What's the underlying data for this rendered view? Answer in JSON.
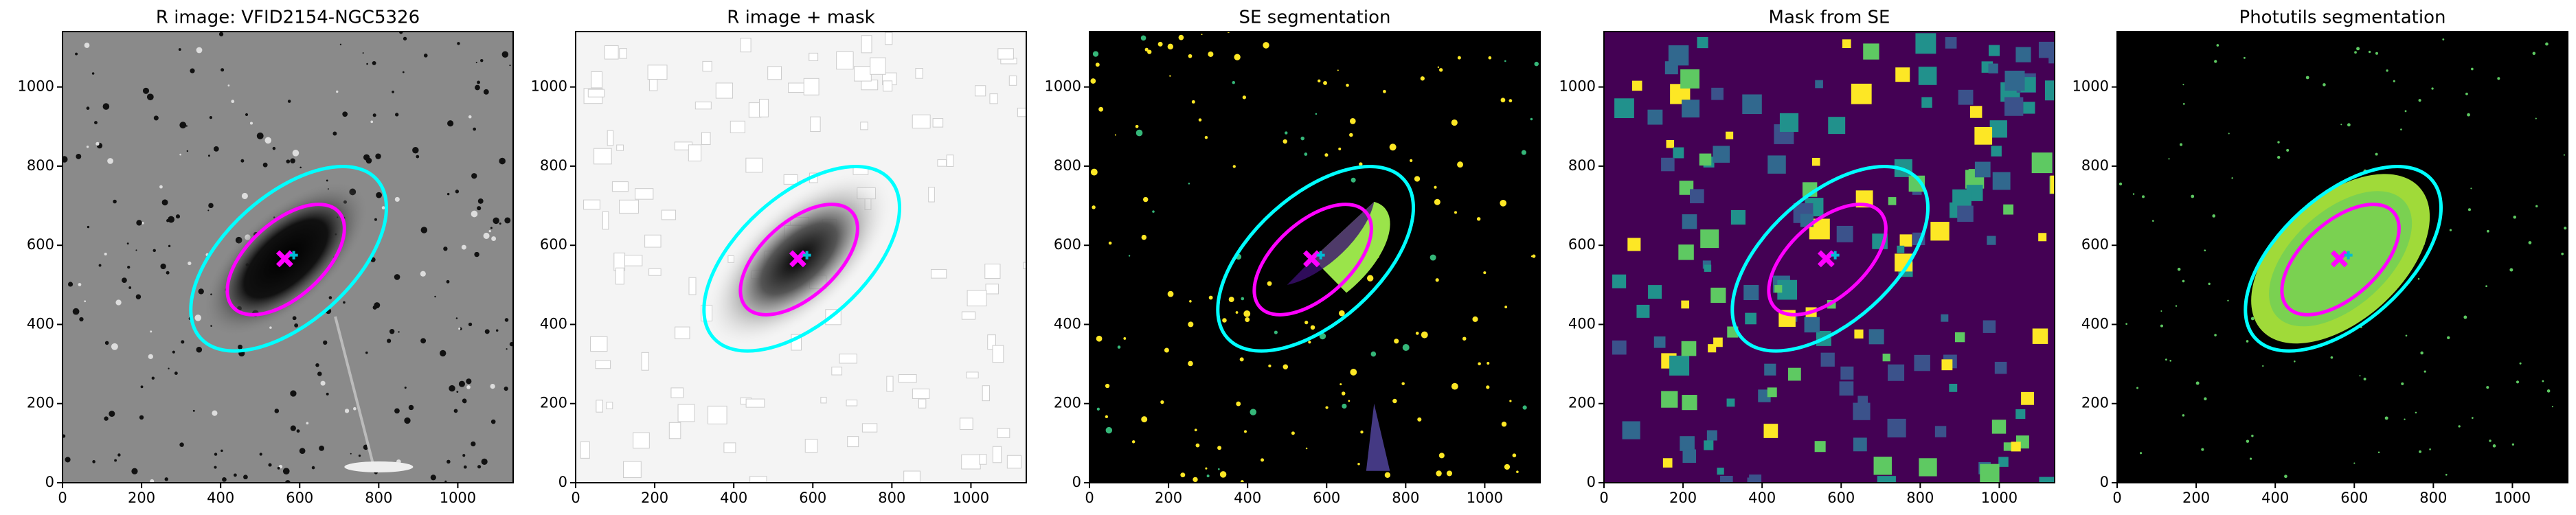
{
  "chart_data": [
    {
      "type": "image",
      "title": "R image: VFID2154-NGC5326",
      "background": "#8a8a8a",
      "xlim": [
        0,
        1140
      ],
      "ylim": [
        0,
        1140
      ],
      "xticks": [
        0,
        200,
        400,
        600,
        800,
        1000
      ],
      "yticks": [
        0,
        200,
        400,
        600,
        800,
        1000
      ],
      "ellipses": [
        {
          "x": 572,
          "y": 566,
          "a": 300,
          "b": 160,
          "angle": 42,
          "color": "#00ffff"
        },
        {
          "x": 565,
          "y": 564,
          "a": 180,
          "b": 95,
          "angle": 42,
          "color": "#ff00ff"
        }
      ],
      "markers": [
        {
          "x": 562,
          "y": 566,
          "color": "#ff00ff"
        },
        {
          "x": 585,
          "y": 575,
          "color": "#00bcd4"
        }
      ]
    },
    {
      "type": "image",
      "title": "R image + mask",
      "background": "#f4f4f4",
      "xlim": [
        0,
        1140
      ],
      "ylim": [
        0,
        1140
      ],
      "xticks": [
        0,
        200,
        400,
        600,
        800,
        1000
      ],
      "yticks": [
        0,
        200,
        400,
        600,
        800,
        1000
      ],
      "ellipses": [
        {
          "x": 572,
          "y": 566,
          "a": 300,
          "b": 160,
          "angle": 42,
          "color": "#00ffff"
        },
        {
          "x": 565,
          "y": 564,
          "a": 180,
          "b": 95,
          "angle": 42,
          "color": "#ff00ff"
        }
      ],
      "markers": [
        {
          "x": 562,
          "y": 566,
          "color": "#ff00ff"
        },
        {
          "x": 585,
          "y": 575,
          "color": "#00bcd4"
        }
      ]
    },
    {
      "type": "image",
      "title": "SE segmentation",
      "background": "#000000",
      "xlim": [
        0,
        1140
      ],
      "ylim": [
        0,
        1140
      ],
      "xticks": [
        0,
        200,
        400,
        600,
        800,
        1000
      ],
      "yticks": [
        0,
        200,
        400,
        600,
        800,
        1000
      ],
      "ellipses": [
        {
          "x": 572,
          "y": 566,
          "a": 300,
          "b": 160,
          "angle": 42,
          "color": "#00ffff"
        },
        {
          "x": 565,
          "y": 564,
          "a": 180,
          "b": 95,
          "angle": 42,
          "color": "#ff00ff"
        }
      ],
      "markers": [
        {
          "x": 562,
          "y": 566,
          "color": "#ff00ff"
        },
        {
          "x": 585,
          "y": 575,
          "color": "#00bcd4"
        }
      ]
    },
    {
      "type": "image",
      "title": "Mask from SE",
      "background": "#440154",
      "xlim": [
        0,
        1140
      ],
      "ylim": [
        0,
        1140
      ],
      "xticks": [
        0,
        200,
        400,
        600,
        800,
        1000
      ],
      "yticks": [
        0,
        200,
        400,
        600,
        800,
        1000
      ],
      "ellipses": [
        {
          "x": 572,
          "y": 566,
          "a": 300,
          "b": 160,
          "angle": 42,
          "color": "#00ffff"
        },
        {
          "x": 565,
          "y": 564,
          "a": 180,
          "b": 95,
          "angle": 42,
          "color": "#ff00ff"
        }
      ],
      "markers": [
        {
          "x": 562,
          "y": 566,
          "color": "#ff00ff"
        },
        {
          "x": 585,
          "y": 575,
          "color": "#00bcd4"
        }
      ]
    },
    {
      "type": "image",
      "title": "Photutils segmentation",
      "background": "#000000",
      "xlim": [
        0,
        1140
      ],
      "ylim": [
        0,
        1140
      ],
      "xticks": [
        0,
        200,
        400,
        600,
        800,
        1000
      ],
      "yticks": [
        0,
        200,
        400,
        600,
        800,
        1000
      ],
      "ellipses": [
        {
          "x": 572,
          "y": 566,
          "a": 300,
          "b": 160,
          "angle": 42,
          "color": "#00ffff"
        },
        {
          "x": 565,
          "y": 564,
          "a": 180,
          "b": 95,
          "angle": 42,
          "color": "#ff00ff"
        }
      ],
      "markers": [
        {
          "x": 562,
          "y": 566,
          "color": "#ff00ff"
        },
        {
          "x": 585,
          "y": 575,
          "color": "#00bcd4"
        }
      ]
    }
  ]
}
